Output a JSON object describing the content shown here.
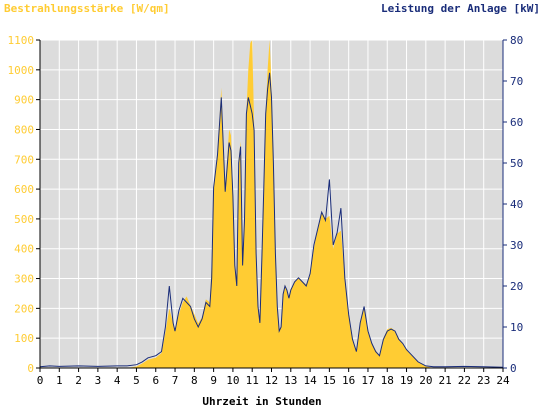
{
  "chart_data": {
    "type": "area",
    "title_left": "Bestrahlungsstärke [W/qm]",
    "title_right": "Leistung der Anlage [kW]",
    "xlabel": "Uhrzeit in Stunden",
    "xlim": [
      0,
      24
    ],
    "xticks": [
      "0",
      "1",
      "2",
      "3",
      "4",
      "5",
      "6",
      "7",
      "8",
      "9",
      "10",
      "11",
      "12",
      "13",
      "14",
      "15",
      "16",
      "17",
      "18",
      "19",
      "20",
      "21",
      "22",
      "23",
      "24"
    ],
    "ylim_left": [
      0,
      1100
    ],
    "yticks_left": [
      "0",
      "100",
      "200",
      "300",
      "400",
      "500",
      "600",
      "700",
      "800",
      "900",
      "1000",
      "1100"
    ],
    "ylim_right": [
      0,
      80
    ],
    "yticks_right": [
      "0",
      "10",
      "20",
      "30",
      "40",
      "50",
      "60",
      "70",
      "80"
    ],
    "grid": true,
    "colors": {
      "background": "#dcdcdc",
      "irradiance": "#ffcc33",
      "power": "#1a2d7a",
      "left_axis_text": "#ffcc33",
      "right_axis_text": "#1a2d7a"
    },
    "series": [
      {
        "axis": "left",
        "style": "area",
        "x": [
          0,
          0.5,
          1,
          2,
          3,
          4,
          4.5,
          5,
          5.3,
          5.6,
          6.0,
          6.3,
          6.5,
          6.7,
          6.9,
          7.0,
          7.2,
          7.4,
          7.6,
          7.8,
          8.0,
          8.2,
          8.4,
          8.6,
          8.8,
          8.9,
          9.0,
          9.2,
          9.4,
          9.6,
          9.8,
          9.9,
          10.0,
          10.1,
          10.2,
          10.3,
          10.4,
          10.5,
          10.6,
          10.7,
          10.8,
          10.9,
          11.0,
          11.1,
          11.2,
          11.3,
          11.4,
          11.5,
          11.6,
          11.7,
          11.8,
          11.9,
          12.0,
          12.1,
          12.2,
          12.3,
          12.4,
          12.5,
          12.6,
          12.7,
          12.8,
          12.9,
          13.0,
          13.2,
          13.4,
          13.6,
          13.8,
          14.0,
          14.2,
          14.4,
          14.6,
          14.8,
          15.0,
          15.2,
          15.4,
          15.6,
          15.8,
          16.0,
          16.2,
          16.4,
          16.6,
          16.8,
          17.0,
          17.2,
          17.4,
          17.6,
          17.8,
          18.0,
          18.2,
          18.4,
          18.6,
          18.8,
          19.0,
          19.3,
          19.6,
          20.0,
          20.4,
          21,
          22,
          23,
          24
        ],
        "values": [
          0,
          0,
          0,
          0,
          0,
          0,
          0,
          5,
          15,
          28,
          35,
          50,
          120,
          200,
          150,
          130,
          180,
          220,
          240,
          210,
          180,
          150,
          170,
          230,
          220,
          350,
          600,
          720,
          940,
          600,
          800,
          780,
          600,
          350,
          300,
          700,
          760,
          350,
          500,
          860,
          1000,
          1090,
          1100,
          820,
          400,
          200,
          150,
          380,
          600,
          860,
          1000,
          1100,
          950,
          700,
          400,
          200,
          120,
          140,
          250,
          280,
          260,
          230,
          260,
          290,
          300,
          290,
          280,
          310,
          400,
          470,
          520,
          500,
          510,
          400,
          450,
          460,
          300,
          180,
          100,
          60,
          150,
          200,
          120,
          80,
          60,
          40,
          100,
          130,
          135,
          125,
          100,
          80,
          60,
          40,
          20,
          5,
          0,
          0,
          0,
          0,
          0
        ]
      },
      {
        "axis": "right",
        "style": "line",
        "x": [
          0,
          0.5,
          1,
          2,
          3,
          4,
          4.5,
          5,
          5.3,
          5.6,
          6.0,
          6.3,
          6.5,
          6.7,
          6.9,
          7.0,
          7.2,
          7.4,
          7.6,
          7.8,
          8.0,
          8.2,
          8.4,
          8.6,
          8.8,
          8.9,
          9.0,
          9.2,
          9.4,
          9.6,
          9.8,
          9.9,
          10.0,
          10.1,
          10.2,
          10.3,
          10.4,
          10.5,
          10.6,
          10.7,
          10.8,
          10.9,
          11.0,
          11.1,
          11.2,
          11.3,
          11.4,
          11.5,
          11.6,
          11.7,
          11.8,
          11.9,
          12.0,
          12.1,
          12.2,
          12.3,
          12.4,
          12.5,
          12.6,
          12.7,
          12.8,
          12.9,
          13.0,
          13.2,
          13.4,
          13.6,
          13.8,
          14.0,
          14.2,
          14.4,
          14.6,
          14.8,
          15.0,
          15.2,
          15.4,
          15.6,
          15.8,
          16.0,
          16.2,
          16.4,
          16.6,
          16.8,
          17.0,
          17.2,
          17.4,
          17.6,
          17.8,
          18.0,
          18.2,
          18.4,
          18.6,
          18.8,
          19.0,
          19.3,
          19.6,
          20.0,
          20.4,
          21,
          22,
          23,
          24
        ],
        "values": [
          0.3,
          0.5,
          0.4,
          0.5,
          0.4,
          0.5,
          0.5,
          0.8,
          1.5,
          2.5,
          3,
          4,
          10,
          20,
          11,
          9,
          14,
          17,
          16,
          15,
          12,
          10,
          12,
          16,
          15,
          22,
          44,
          52,
          66,
          43,
          55,
          53,
          42,
          25,
          20,
          50,
          54,
          25,
          36,
          62,
          66,
          64,
          62,
          58,
          28,
          15,
          11,
          27,
          44,
          62,
          68,
          72,
          66,
          50,
          28,
          15,
          9,
          10,
          18,
          20,
          19,
          17,
          19,
          21,
          22,
          21,
          20,
          23,
          30,
          34,
          38,
          36,
          46,
          30,
          33,
          39,
          22,
          13,
          7,
          4,
          11,
          15,
          9,
          6,
          4,
          3,
          7,
          9,
          9.5,
          9,
          7,
          6,
          4.5,
          3,
          1.5,
          0.5,
          0.3,
          0.3,
          0.4,
          0.3,
          0.2
        ]
      }
    ]
  }
}
